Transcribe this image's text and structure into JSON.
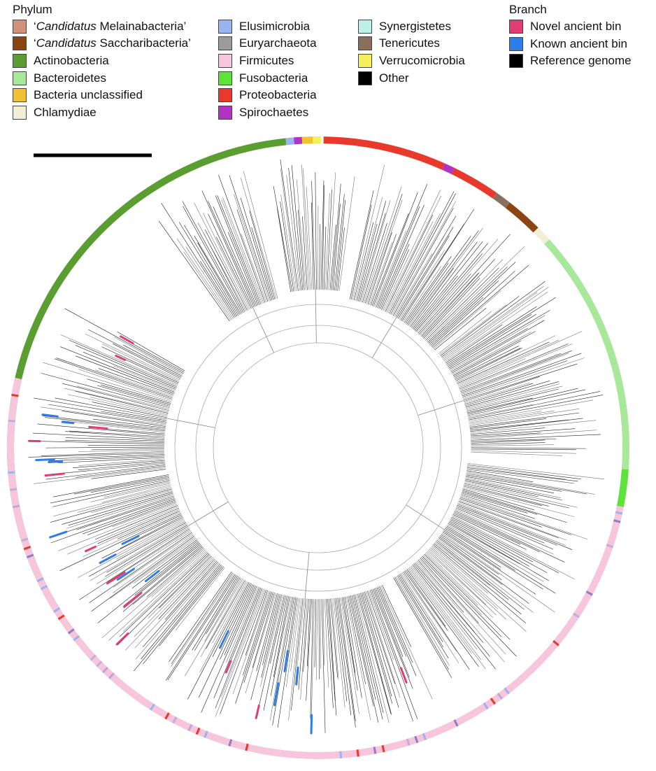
{
  "legend": {
    "phylum_title": "Phylum",
    "branch_title": "Branch",
    "phylum": [
      {
        "prefix": "‘",
        "italic": "Candidatus",
        "label": " Melainabacteria’",
        "color": "#d4917a"
      },
      {
        "prefix": "‘",
        "italic": "Candidatus",
        "label": " Saccharibacteria’",
        "color": "#8b4513"
      },
      {
        "prefix": "",
        "italic": "",
        "label": "Actinobacteria",
        "color": "#5a9e32"
      },
      {
        "prefix": "",
        "italic": "",
        "label": "Bacteroidetes",
        "color": "#a8e89a"
      },
      {
        "prefix": "",
        "italic": "",
        "label": "Bacteria unclassified",
        "color": "#f2c233"
      },
      {
        "prefix": "",
        "italic": "",
        "label": "Chlamydiae",
        "color": "#f1efd6"
      },
      {
        "prefix": "",
        "italic": "",
        "label": "Elusimicrobia",
        "color": "#9ab4f0"
      },
      {
        "prefix": "",
        "italic": "",
        "label": "Euryarchaeota",
        "color": "#9c9c9c"
      },
      {
        "prefix": "",
        "italic": "",
        "label": "Firmicutes",
        "color": "#f7c6dc"
      },
      {
        "prefix": "",
        "italic": "",
        "label": "Fusobacteria",
        "color": "#5ee33a"
      },
      {
        "prefix": "",
        "italic": "",
        "label": "Proteobacteria",
        "color": "#e8392c"
      },
      {
        "prefix": "",
        "italic": "",
        "label": "Spirochaetes",
        "color": "#b033c4"
      },
      {
        "prefix": "",
        "italic": "",
        "label": "Synergistetes",
        "color": "#bff0e8"
      },
      {
        "prefix": "",
        "italic": "",
        "label": "Tenericutes",
        "color": "#8a6e5e"
      },
      {
        "prefix": "",
        "italic": "",
        "label": "Verrucomicrobia",
        "color": "#f5f05a"
      },
      {
        "prefix": "",
        "italic": "",
        "label": "Other",
        "color": "#000000"
      }
    ],
    "branch": [
      {
        "label": "Novel ancient bin",
        "color": "#e23c72"
      },
      {
        "label": "Known ancient bin",
        "color": "#2f7de8"
      },
      {
        "label": "Reference genome",
        "color": "#000000"
      }
    ]
  },
  "ring": [
    {
      "phylum": "Actinobacteria",
      "start": 238,
      "end": 354,
      "color": "#5a9e32"
    },
    {
      "phylum": "Elusimicrobia",
      "start": 354,
      "end": 355.5,
      "color": "#9ab4f0"
    },
    {
      "phylum": "Spirochaetes",
      "start": 355.5,
      "end": 357,
      "color": "#b033c4"
    },
    {
      "phylum": "Bacteria unclassified",
      "start": 357,
      "end": 359,
      "color": "#f2c233"
    },
    {
      "phylum": "Verrucomicrobia",
      "start": 359,
      "end": 360.5,
      "color": "#f5f05a"
    },
    {
      "phylum": "Proteobacteria",
      "start": 361,
      "end": 24,
      "color": "#e8392c"
    },
    {
      "phylum": "Spirochaetes",
      "start": 24,
      "end": 26,
      "color": "#b033c4"
    },
    {
      "phylum": "Proteobacteria",
      "start": 26,
      "end": 35,
      "color": "#e8392c"
    },
    {
      "phylum": "Tenericutes",
      "start": 35,
      "end": 38,
      "color": "#8a6e5e"
    },
    {
      "phylum": "‘Candidatus Saccharibacteria’",
      "start": 38,
      "end": 45,
      "color": "#8b4513"
    },
    {
      "phylum": "Chlamydiae",
      "start": 45,
      "end": 48,
      "color": "#f1efd6"
    },
    {
      "phylum": "Bacteroidetes",
      "start": 48,
      "end": 94,
      "color": "#a8e89a"
    },
    {
      "phylum": "Fusobacteria",
      "start": 94,
      "end": 101,
      "color": "#5ee33a"
    },
    {
      "phylum": "Firmicutes",
      "start": 101,
      "end": 283,
      "color": "#f7c6dc"
    }
  ],
  "tree": {
    "scale_bar_length": "",
    "clades": [
      {
        "angle_start": 12,
        "angle_end": 50,
        "depth": 0.55
      },
      {
        "angle_start": 52,
        "angle_end": 92,
        "depth": 0.5
      },
      {
        "angle_start": 96,
        "angle_end": 150,
        "depth": 0.45
      },
      {
        "angle_start": 155,
        "angle_end": 215,
        "depth": 0.42
      },
      {
        "angle_start": 218,
        "angle_end": 260,
        "depth": 0.5
      },
      {
        "angle_start": 262,
        "angle_end": 300,
        "depth": 0.55
      },
      {
        "angle_start": 325,
        "angle_end": 345,
        "depth": 0.6
      },
      {
        "angle_start": 350,
        "angle_end": 8,
        "depth": 0.6
      }
    ]
  }
}
